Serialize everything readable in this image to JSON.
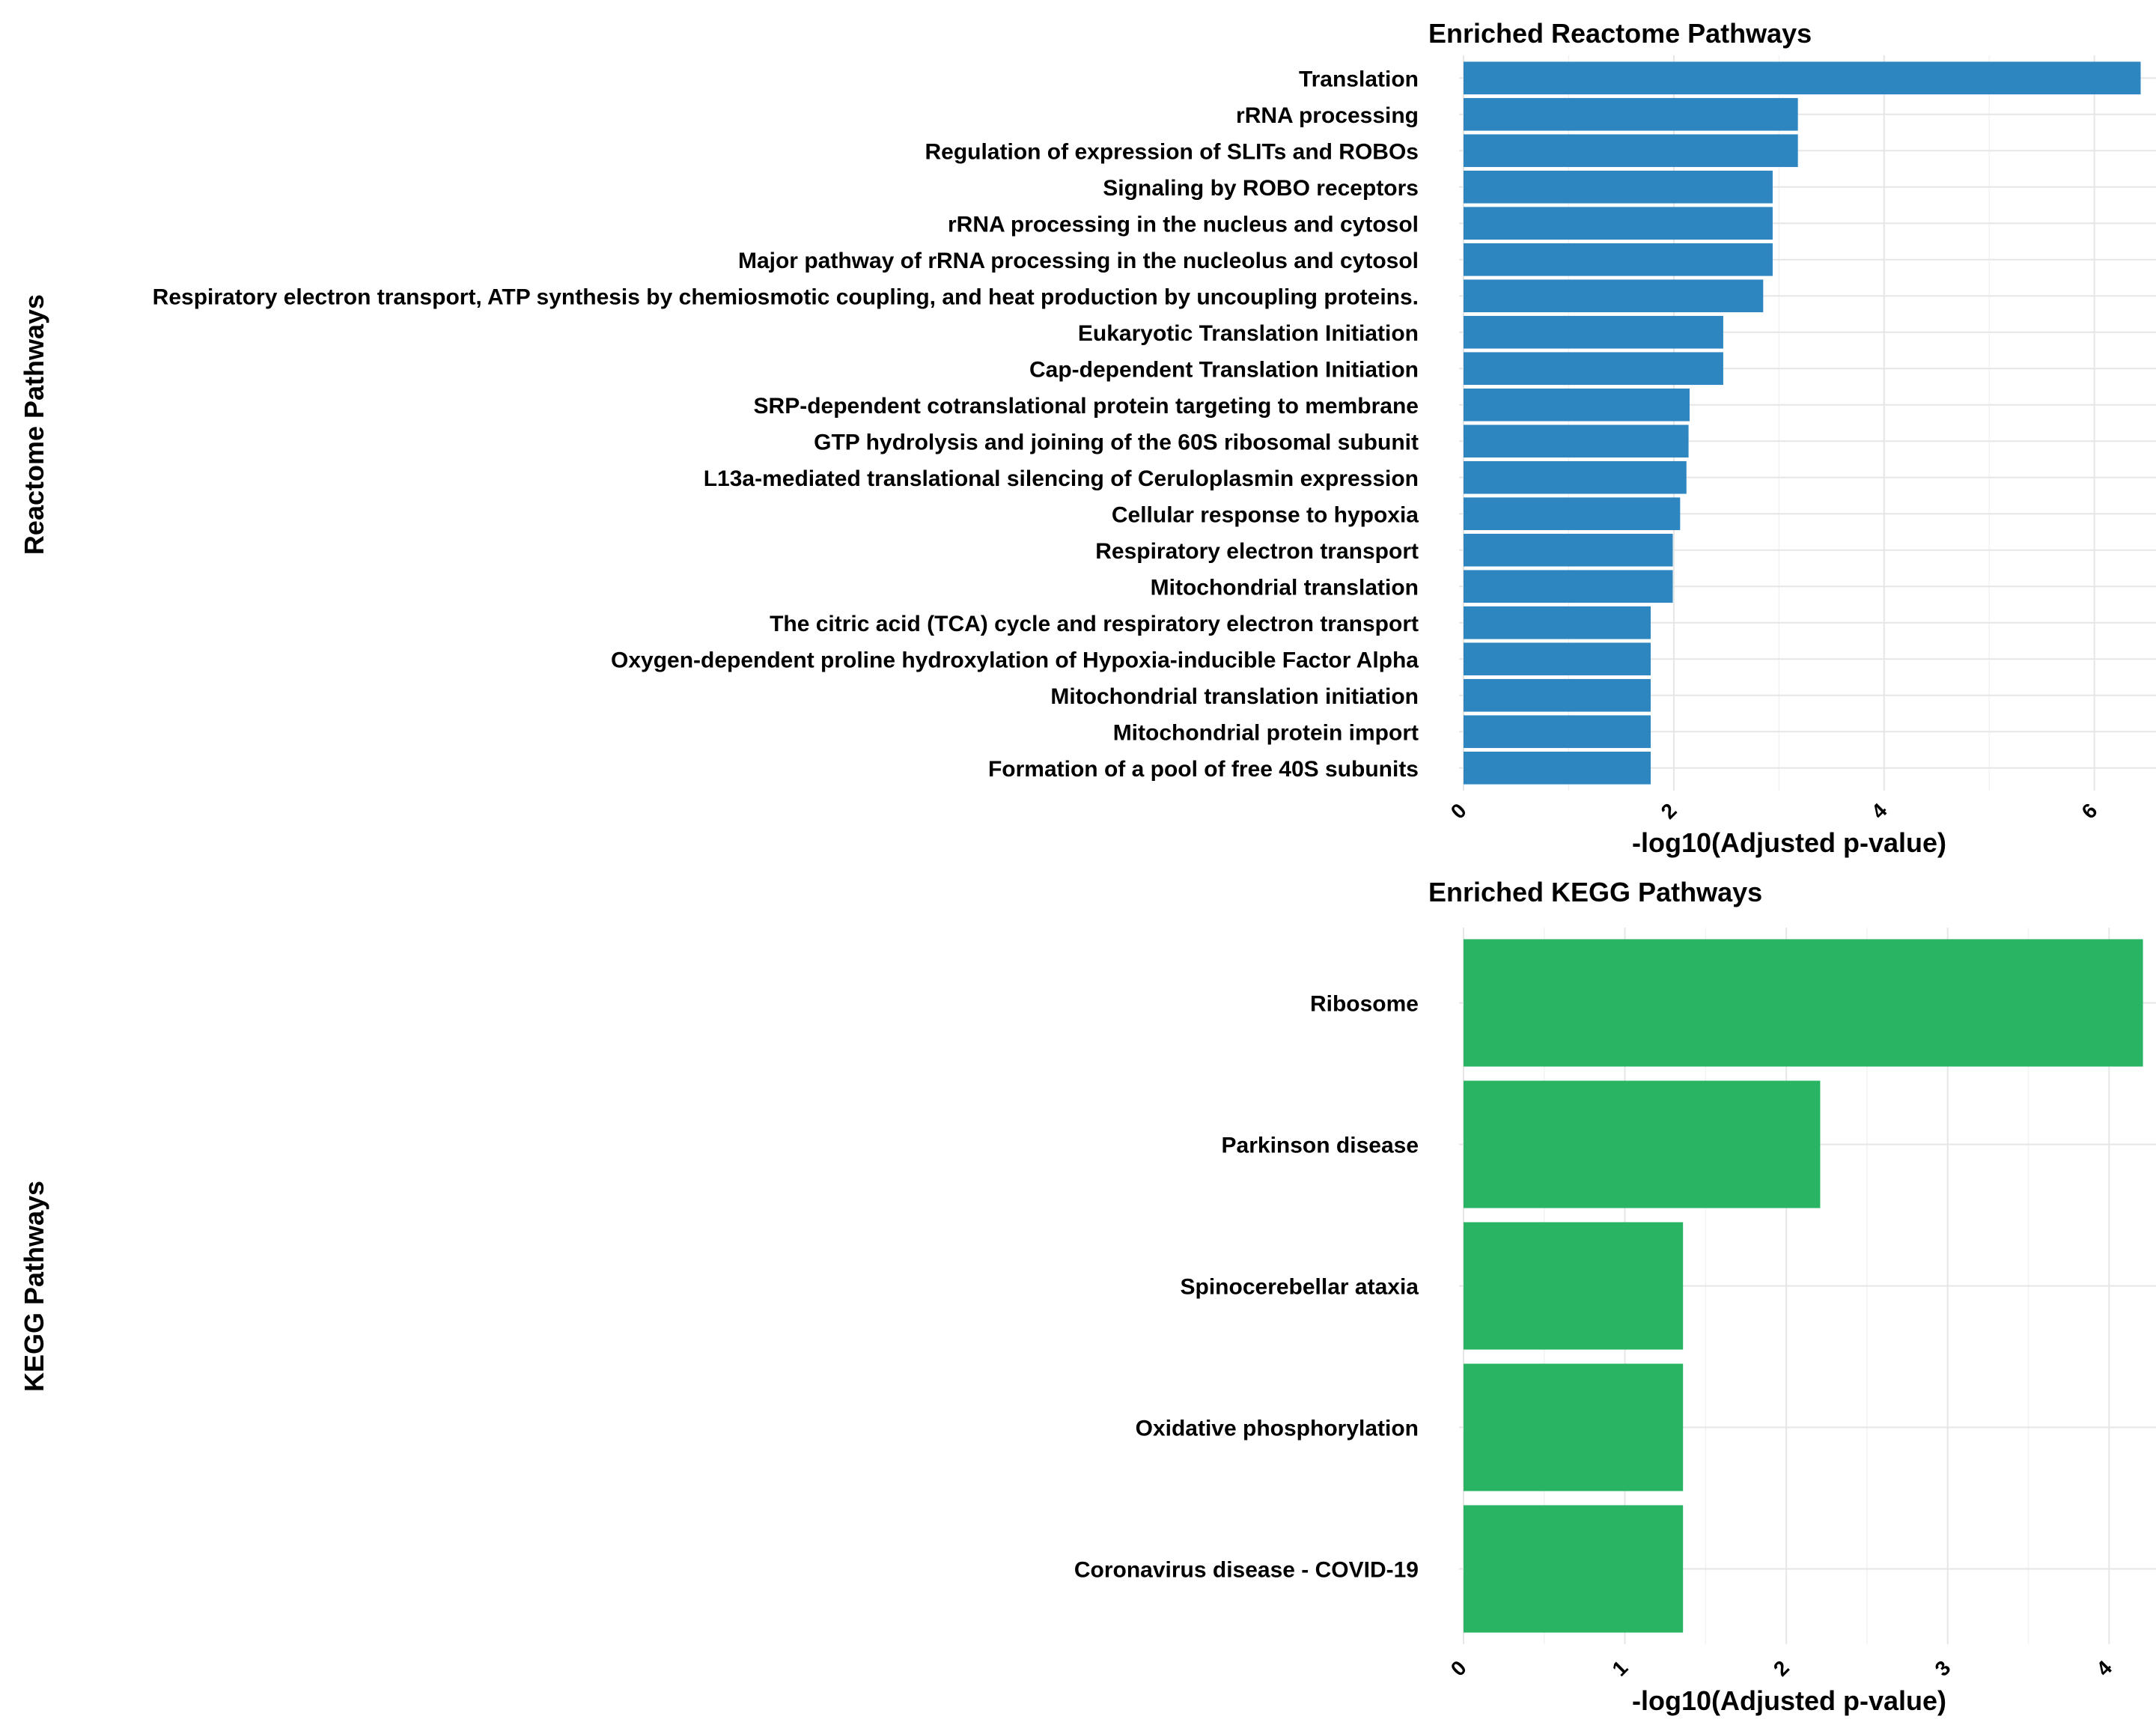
{
  "colors": {
    "reactome_bar": "#2e86c1",
    "kegg_bar": "#28b463",
    "grid": "#e6e6e6"
  },
  "chart_data": [
    {
      "type": "bar",
      "orientation": "horizontal",
      "title": "Enriched Reactome Pathways",
      "xlabel": "-log10(Adjusted p-value)",
      "ylabel": "Reactome Pathways",
      "xlim": [
        0,
        6.6
      ],
      "xticks": [
        0,
        2,
        4,
        6
      ],
      "grid": true,
      "categories": [
        "Translation",
        "rRNA processing",
        "Regulation of expression of SLITs and ROBOs",
        "Signaling by ROBO receptors",
        "rRNA processing in the nucleus and cytosol",
        "Major pathway of rRNA processing in the nucleolus and cytosol",
        "Respiratory electron transport, ATP synthesis by chemiosmotic coupling, and heat production by uncoupling proteins.",
        "Eukaryotic Translation Initiation",
        "Cap-dependent Translation Initiation",
        "SRP-dependent cotranslational protein targeting to membrane",
        "GTP hydrolysis and joining of the 60S ribosomal subunit",
        "L13a-mediated translational silencing of Ceruloplasmin expression",
        "Cellular response to hypoxia",
        "Respiratory electron transport",
        "Mitochondrial translation",
        "The citric acid (TCA) cycle and respiratory electron transport",
        "Oxygen-dependent proline hydroxylation of Hypoxia-inducible Factor Alpha",
        "Mitochondrial translation initiation",
        "Mitochondrial protein import",
        "Formation of a pool of free 40S subunits"
      ],
      "values": [
        6.44,
        3.18,
        3.18,
        2.94,
        2.94,
        2.94,
        2.85,
        2.47,
        2.47,
        2.15,
        2.14,
        2.12,
        2.06,
        1.99,
        1.99,
        1.78,
        1.78,
        1.78,
        1.78,
        1.78
      ]
    },
    {
      "type": "bar",
      "orientation": "horizontal",
      "title": "Enriched KEGG Pathways",
      "xlabel": "-log10(Adjusted p-value)",
      "ylabel": "KEGG Pathways",
      "xlim": [
        0,
        4.3
      ],
      "xticks": [
        0,
        1,
        2,
        3,
        4
      ],
      "grid": true,
      "categories": [
        "Ribosome",
        "Parkinson disease",
        "Spinocerebellar ataxia",
        "Oxidative phosphorylation",
        "Coronavirus disease - COVID-19"
      ],
      "values": [
        4.21,
        2.21,
        1.36,
        1.36,
        1.36
      ]
    }
  ]
}
